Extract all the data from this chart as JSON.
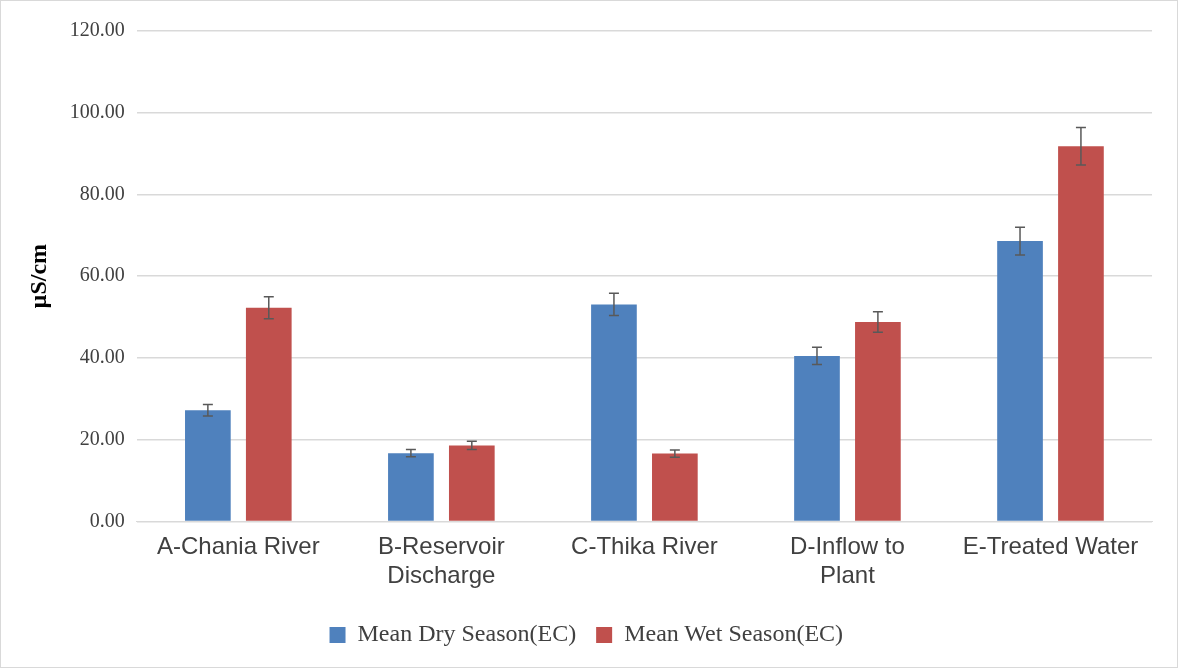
{
  "chart_data": {
    "type": "bar",
    "ylabel": "µS/cm",
    "categories": [
      "A-Chania River",
      "B-Reservoir Discharge",
      "C-Thika River",
      "D-Inflow to Plant",
      "E-Treated Water"
    ],
    "series": [
      {
        "name": "Mean Dry Season(EC)",
        "color": "#4f81bd",
        "values": [
          27.2,
          16.7,
          53.1,
          40.5,
          68.6
        ],
        "errors": [
          1.4,
          0.9,
          2.7,
          2.1,
          3.4
        ]
      },
      {
        "name": "Mean Wet Season(EC)",
        "color": "#c0504d",
        "values": [
          52.3,
          18.6,
          16.6,
          48.8,
          91.8
        ],
        "errors": [
          2.7,
          1.0,
          0.9,
          2.5,
          4.6
        ]
      }
    ],
    "ylim": [
      0,
      120
    ],
    "yticks": [
      {
        "value": 0,
        "label": "0.00"
      },
      {
        "value": 20,
        "label": "20.00"
      },
      {
        "value": 40,
        "label": "40.00"
      },
      {
        "value": 60,
        "label": "60.00"
      },
      {
        "value": 80,
        "label": "80.00"
      },
      {
        "value": 100,
        "label": "100.00"
      },
      {
        "value": 120,
        "label": "120.00"
      }
    ],
    "grid": "y",
    "legend": "bottom"
  }
}
